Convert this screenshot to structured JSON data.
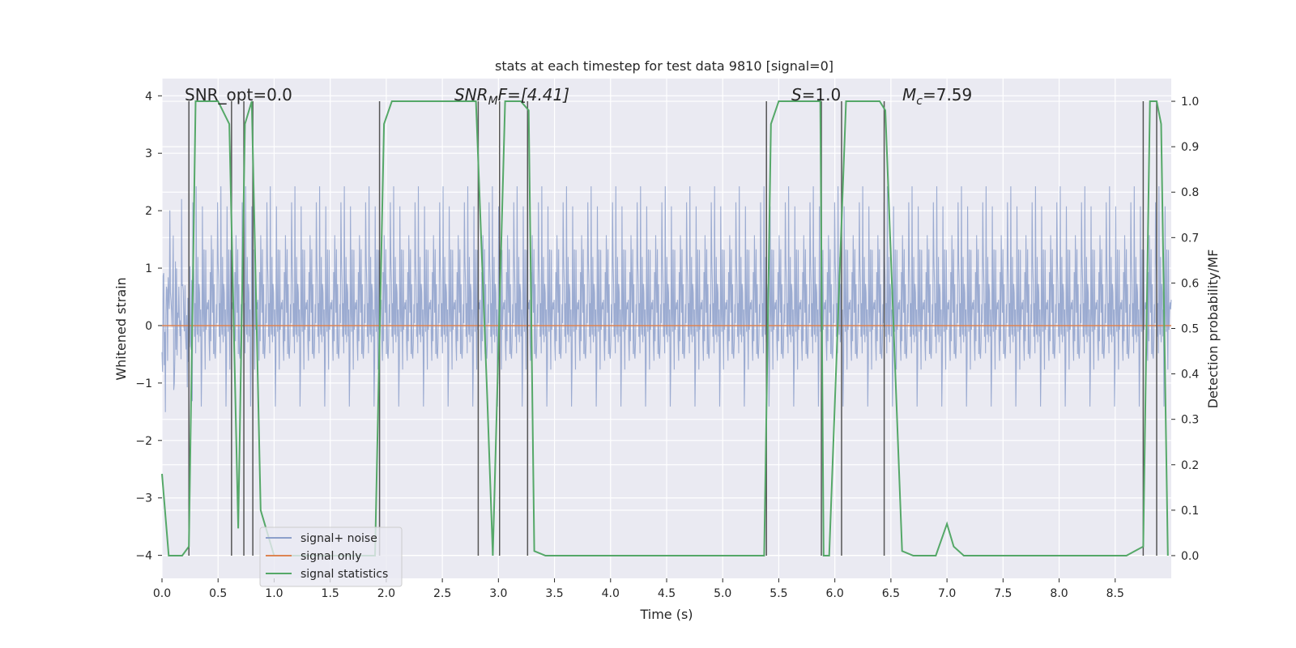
{
  "chart_data": {
    "type": "line",
    "title": "stats at each timestep for test data 9810 [signal=0]",
    "xlabel": "Time (s)",
    "ylabel_left": "Whitened strain",
    "ylabel_right": "Detection probability/MF",
    "xlim": [
      0,
      9.0
    ],
    "ylim_left": [
      -4.4,
      4.3
    ],
    "ylim_right": [
      -0.05,
      1.05
    ],
    "x_ticks": [
      0.0,
      0.5,
      1.0,
      1.5,
      2.0,
      2.5,
      3.0,
      3.5,
      4.0,
      4.5,
      5.0,
      5.5,
      6.0,
      6.5,
      7.0,
      7.5,
      8.0,
      8.5
    ],
    "x_tick_labels": [
      "0.0",
      "0.5",
      "1.0",
      "1.5",
      "2.0",
      "2.5",
      "3.0",
      "3.5",
      "4.0",
      "4.5",
      "5.0",
      "5.5",
      "6.0",
      "6.5",
      "7.0",
      "7.5",
      "8.0",
      "8.5"
    ],
    "y_left_ticks": [
      4,
      3,
      2,
      1,
      0,
      -1,
      -2,
      -3,
      -4
    ],
    "y_left_tick_labels": [
      "4",
      "3",
      "2",
      "1",
      "0",
      "−1",
      "−2",
      "−3",
      "−4"
    ],
    "y_right_ticks": [
      1.0,
      0.9,
      0.8,
      0.7,
      0.6,
      0.5,
      0.4,
      0.3,
      0.2,
      0.1,
      0.0
    ],
    "y_right_tick_labels": [
      "1.0",
      "0.9",
      "0.8",
      "0.7",
      "0.6",
      "0.5",
      "0.4",
      "0.3",
      "0.2",
      "0.1",
      "0.0"
    ],
    "annotations": {
      "snr_opt": "SNR_opt=0.0",
      "snr_mf_main": "SNR",
      "snr_mf_sub": "M",
      "snr_mf_rest": "F=[4.41]",
      "s_italic": "S",
      "s_rest": "=1.0",
      "mc_main": "M",
      "mc_sub": "c",
      "mc_rest": "=7.59"
    },
    "legend": {
      "position": "lower-left",
      "entries": [
        "signal+ noise",
        "signal only",
        "signal statistics"
      ]
    },
    "colors": {
      "noise": "#8da0cb",
      "signal_only": "#dd8452",
      "statistics": "#55a868",
      "vlines": "#555555",
      "plot_bg": "#eaeaf2",
      "grid": "#ffffff"
    },
    "series": [
      {
        "name": "signal+ noise",
        "axis": "left",
        "style": "dense noise, amplitude approx. ±2.5, peaks to ±4",
        "seed": 9810,
        "n_samples": 1800
      },
      {
        "name": "signal only",
        "axis": "left",
        "x": [
          0.0,
          9.0
        ],
        "y": [
          0.0,
          0.0
        ]
      },
      {
        "name": "signal statistics",
        "axis": "right",
        "x": [
          0.0,
          0.06,
          0.18,
          0.24,
          0.3,
          0.5,
          0.6,
          0.68,
          0.74,
          0.8,
          0.88,
          1.0,
          1.5,
          1.9,
          1.98,
          2.05,
          2.5,
          2.8,
          2.9,
          2.95,
          3.06,
          3.2,
          3.27,
          3.32,
          3.42,
          4.0,
          5.0,
          5.37,
          5.43,
          5.5,
          5.87,
          5.9,
          5.95,
          6.1,
          6.4,
          6.45,
          6.6,
          6.7,
          6.9,
          7.0,
          7.06,
          7.15,
          7.5,
          8.0,
          8.6,
          8.75,
          8.81,
          8.87,
          8.91,
          8.97
        ],
        "y": [
          0.18,
          0.0,
          0.0,
          0.02,
          1.0,
          1.0,
          0.95,
          0.06,
          0.95,
          1.0,
          0.1,
          0.0,
          0.0,
          0.0,
          0.95,
          1.0,
          1.0,
          1.0,
          0.35,
          0.0,
          1.0,
          1.0,
          0.98,
          0.01,
          0.0,
          0.0,
          0.0,
          0.0,
          0.95,
          1.0,
          1.0,
          0.0,
          0.0,
          1.0,
          1.0,
          0.98,
          0.01,
          0.0,
          0.0,
          0.07,
          0.02,
          0.0,
          0.0,
          0.0,
          0.0,
          0.02,
          1.0,
          1.0,
          0.95,
          0.0
        ]
      }
    ],
    "vertical_lines_x": [
      0.24,
      0.62,
      0.73,
      0.81,
      1.94,
      2.82,
      3.01,
      3.26,
      5.39,
      5.88,
      6.06,
      6.44,
      8.75,
      8.87
    ]
  }
}
